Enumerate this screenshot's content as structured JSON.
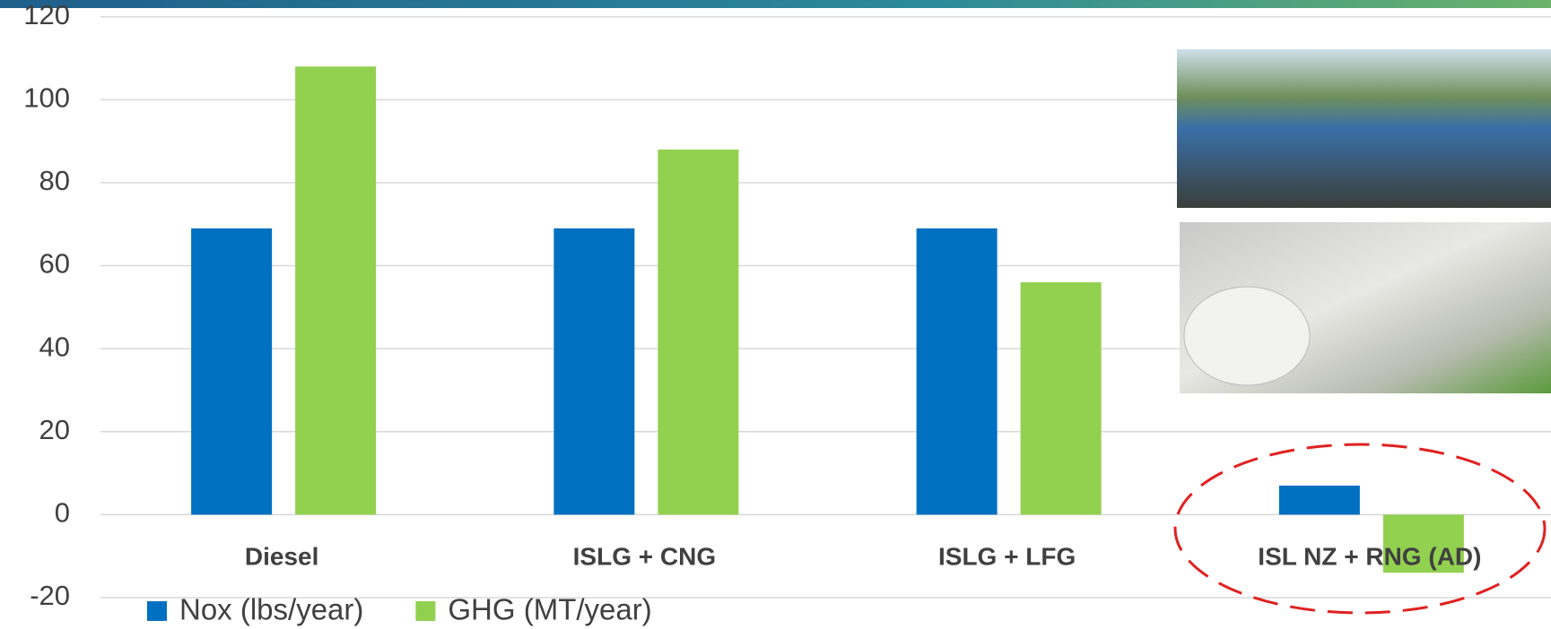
{
  "chart_data": {
    "type": "bar",
    "categories": [
      "Diesel",
      "ISLG + CNG",
      "ISLG + LFG",
      "ISL NZ + RNG (AD)"
    ],
    "series": [
      {
        "name": "Nox (lbs/year)",
        "color": "#0070c0",
        "values": [
          69,
          69,
          69,
          7
        ]
      },
      {
        "name": "GHG (MT/year)",
        "color": "#92d050",
        "values": [
          108,
          88,
          56,
          -14
        ]
      }
    ],
    "ylim": [
      -20,
      120
    ],
    "yticks": [
      -20,
      0,
      20,
      40,
      60,
      80,
      100,
      120
    ],
    "grid": true
  }
}
